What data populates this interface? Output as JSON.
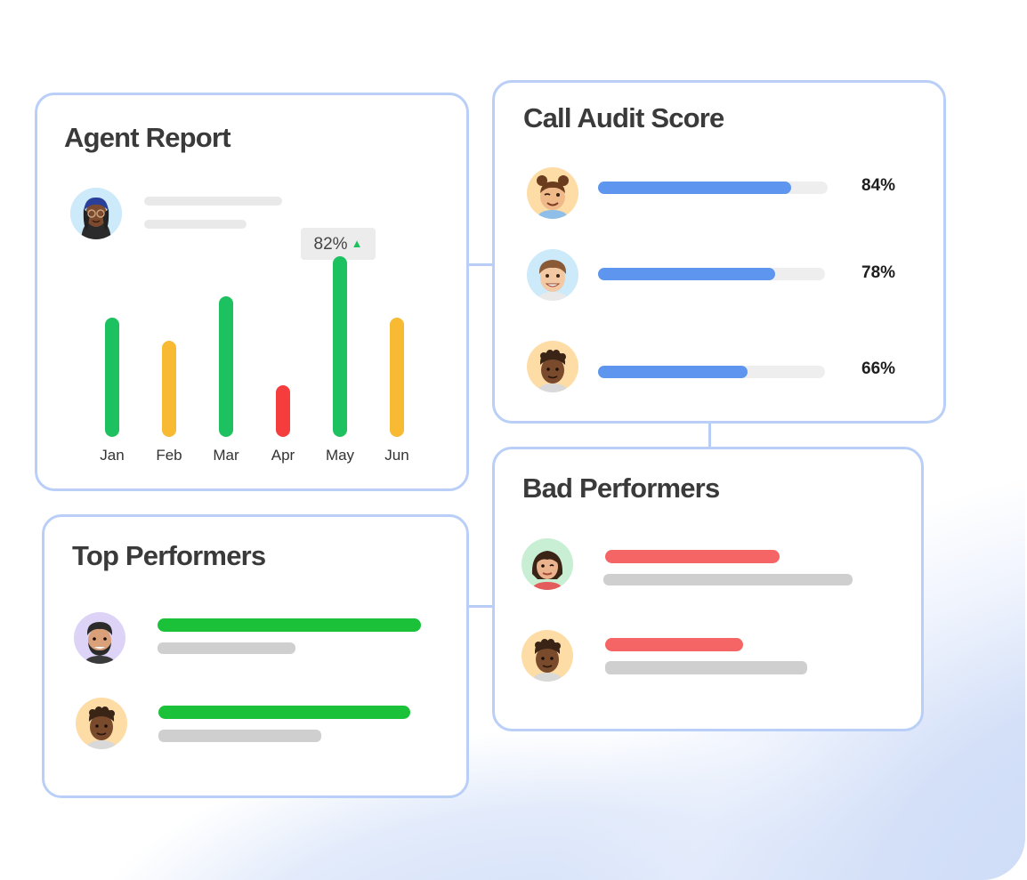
{
  "agent_report": {
    "title": "Agent Report",
    "badge": {
      "value": "82%",
      "trend_icon": "triangle-up-icon",
      "trend_color": "#1ec160"
    },
    "chart_data": {
      "type": "bar",
      "categories": [
        "Jan",
        "Feb",
        "Mar",
        "Apr",
        "May",
        "Jun"
      ],
      "values": [
        62,
        50,
        73,
        27,
        94,
        62
      ],
      "colors": [
        "#1ec160",
        "#f8b933",
        "#1ec160",
        "#f53d3d",
        "#1ec160",
        "#f8b933"
      ],
      "highlight_category": "May",
      "ylim": [
        0,
        100
      ]
    }
  },
  "call_audit": {
    "title": "Call Audit Score",
    "rows": [
      {
        "avatar": "woman-winking-avatar",
        "value": 0.84,
        "label": "84%"
      },
      {
        "avatar": "man-smiling-avatar",
        "value": 0.78,
        "label": "78%"
      },
      {
        "avatar": "man-curly-hair-avatar",
        "value": 0.66,
        "label": "66%"
      }
    ],
    "fill_color": "#5e95ee"
  },
  "top_performers": {
    "title": "Top Performers",
    "rows": [
      {
        "avatar": "man-beard-avatar",
        "bar_color": "#1bc239"
      },
      {
        "avatar": "man-curly-hair-avatar",
        "bar_color": "#1bc239"
      }
    ]
  },
  "bad_performers": {
    "title": "Bad Performers",
    "rows": [
      {
        "avatar": "woman-hair-bun-avatar",
        "bar_color": "#f56565"
      },
      {
        "avatar": "man-curly-hair-avatar",
        "bar_color": "#f56565"
      }
    ]
  }
}
